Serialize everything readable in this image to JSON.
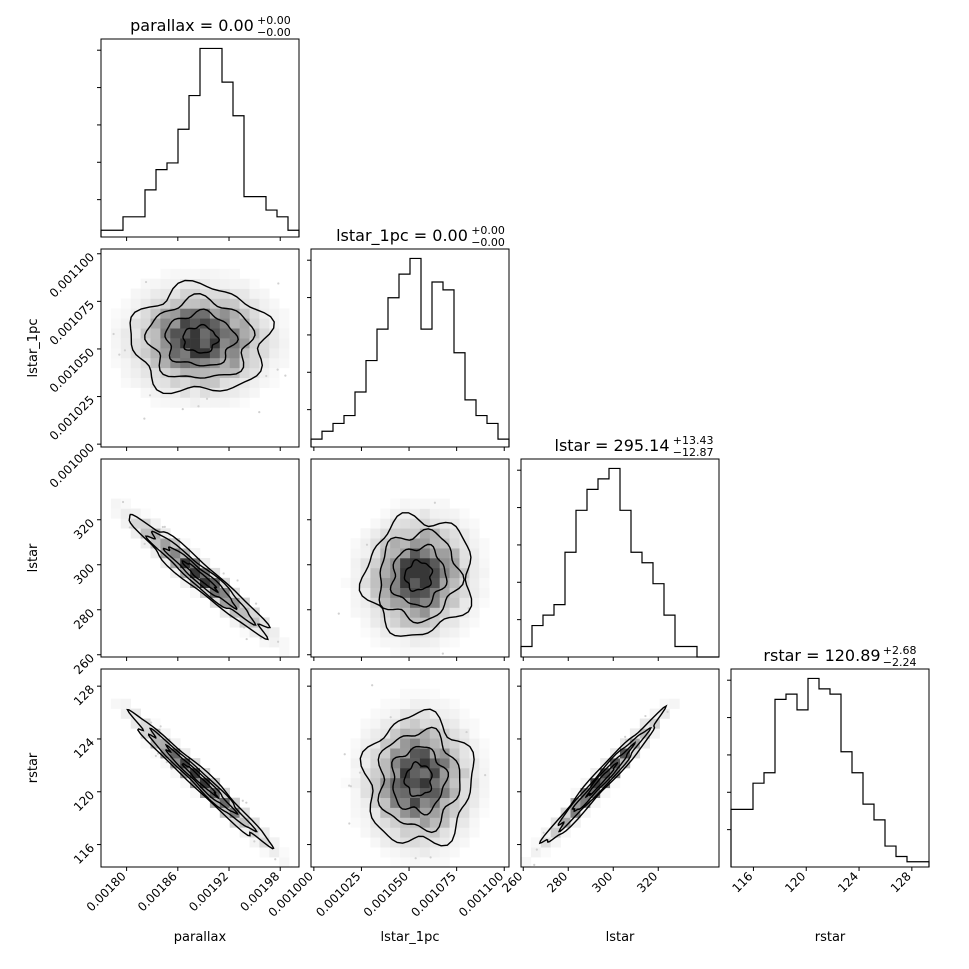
{
  "chart_data": {
    "type": "corner",
    "parameters": [
      "parallax",
      "lstar_1pc",
      "lstar",
      "rstar"
    ],
    "ranges": {
      "parallax": [
        0.00177,
        0.002002
      ],
      "lstar_1pc": [
        0.0009985,
        0.0011025
      ],
      "lstar": [
        259.0,
        347.0
      ],
      "rstar": [
        114.3,
        129.3
      ]
    },
    "titles": [
      {
        "param": "parallax",
        "text": "parallax = 0.00",
        "plus": "+0.00",
        "minus": "−0.00"
      },
      {
        "param": "lstar_1pc",
        "text": "lstar_1pc = 0.00",
        "plus": "+0.00",
        "minus": "−0.00"
      },
      {
        "param": "lstar",
        "text": "lstar = 295.14",
        "plus": "+13.43",
        "minus": "−12.87"
      },
      {
        "param": "rstar",
        "text": "rstar = 120.89",
        "plus": "+2.68",
        "minus": "−2.24"
      }
    ],
    "axis_labels": {
      "parallax": "parallax",
      "lstar_1pc": "lstar_1pc",
      "lstar": "lstar",
      "rstar": "rstar"
    },
    "ticks": {
      "parallax": [
        {
          "value": 0.0018,
          "label": "0.00180"
        },
        {
          "value": 0.00186,
          "label": "0.00186"
        },
        {
          "value": 0.00192,
          "label": "0.00192"
        },
        {
          "value": 0.00198,
          "label": "0.00198"
        }
      ],
      "lstar_1pc": [
        {
          "value": 0.001,
          "label": "0.001000"
        },
        {
          "value": 0.001025,
          "label": "0.001025"
        },
        {
          "value": 0.00105,
          "label": "0.001050"
        },
        {
          "value": 0.001075,
          "label": "0.001075"
        },
        {
          "value": 0.0011,
          "label": "0.001100"
        }
      ],
      "lstar": [
        {
          "value": 260,
          "label": "260"
        },
        {
          "value": 280,
          "label": "280"
        },
        {
          "value": 300,
          "label": "300"
        },
        {
          "value": 320,
          "label": "320"
        }
      ],
      "rstar": [
        {
          "value": 116,
          "label": "116"
        },
        {
          "value": 120,
          "label": "120"
        },
        {
          "value": 124,
          "label": "124"
        },
        {
          "value": 128,
          "label": "128"
        }
      ]
    },
    "histograms": {
      "parallax": [
        1,
        1,
        3,
        3,
        7,
        10,
        11,
        16,
        21,
        28,
        28,
        23,
        18,
        6,
        6,
        4,
        3,
        1
      ],
      "lstar_1pc": [
        1,
        2,
        3,
        4,
        7,
        11,
        15,
        19,
        22,
        24,
        15,
        21,
        20,
        12,
        6,
        4,
        3,
        1
      ],
      "lstar": [
        1,
        3,
        4,
        5,
        10,
        14,
        16,
        17,
        18,
        14,
        10,
        9,
        7,
        4,
        1,
        1,
        0,
        0
      ],
      "rstar": [
        11,
        11,
        16,
        18,
        32,
        33,
        30,
        36,
        34,
        33,
        22,
        18,
        12,
        9,
        4,
        2,
        1,
        1
      ]
    },
    "pair_stats": {
      "lstar_1pc|parallax": {
        "mx": 0.001886,
        "my": 0.001055,
        "sx": 4e-05,
        "sy": 1.4e-05,
        "rho": 0.0
      },
      "lstar|parallax": {
        "mx": 0.001886,
        "my": 295.0,
        "sx": 4e-05,
        "sy": 13.0,
        "rho": -0.96
      },
      "lstar|lstar_1pc": {
        "mx": 0.001055,
        "my": 295.0,
        "sx": 1.4e-05,
        "sy": 13.0,
        "rho": 0.05
      },
      "rstar|parallax": {
        "mx": 0.001886,
        "my": 120.9,
        "sx": 4e-05,
        "sy": 2.45,
        "rho": -0.98
      },
      "rstar|lstar_1pc": {
        "mx": 0.001055,
        "my": 120.9,
        "sx": 1.4e-05,
        "sy": 2.45,
        "rho": 0.0
      },
      "rstar|lstar": {
        "mx": 295.0,
        "my": 120.9,
        "sx": 13.0,
        "sy": 2.45,
        "rho": 0.98
      }
    },
    "contour_levels_sigma": [
      0.5,
      1.0,
      1.5,
      2.0
    ],
    "colors": {
      "line": "#000000",
      "axes": "#000000",
      "background": "#ffffff",
      "points": "#d0d0d0"
    },
    "grid": false,
    "legend": "none"
  }
}
